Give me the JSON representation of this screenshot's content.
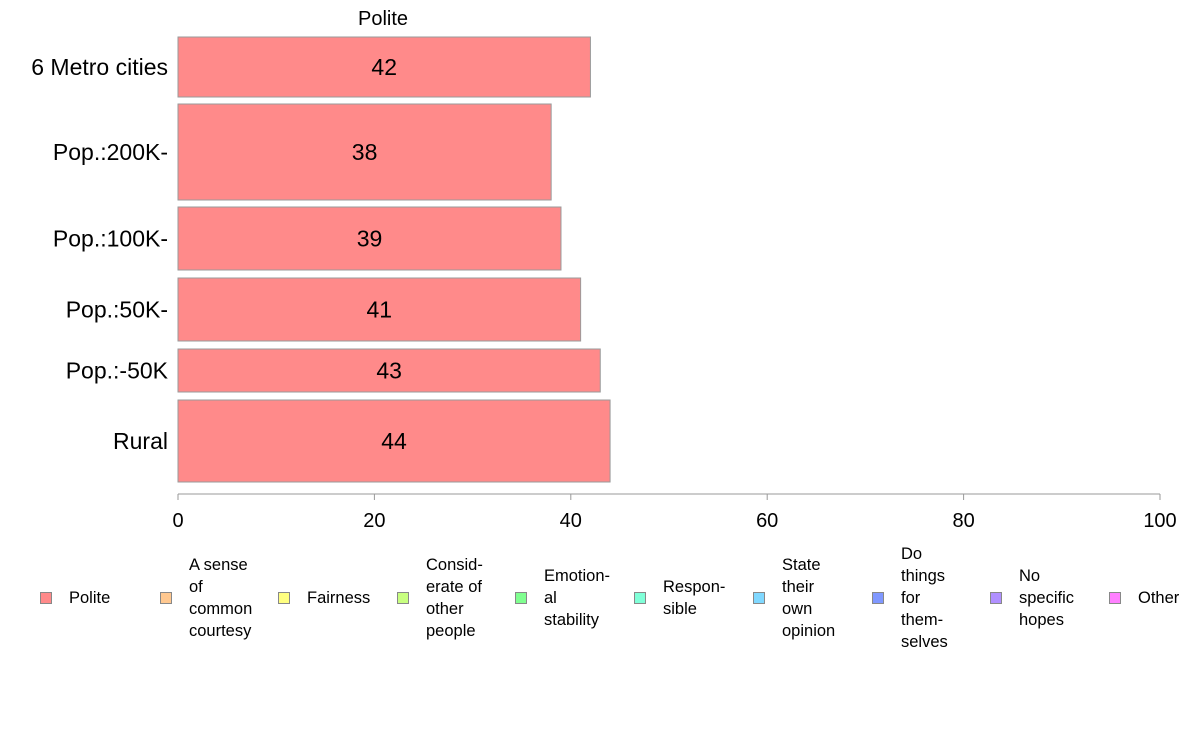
{
  "chart_data": {
    "type": "bar",
    "orientation": "horizontal",
    "title": "Polite",
    "categories": [
      "6 Metro cities",
      "Pop.:200K-",
      "Pop.:100K-",
      "Pop.:50K-",
      "Pop.:-50K",
      "Rural"
    ],
    "series": [
      {
        "name": "Polite",
        "color": "#ff8a8a",
        "values": [
          42,
          38,
          39,
          41,
          43,
          44
        ]
      }
    ],
    "xlim": [
      0,
      100
    ],
    "xticks": [
      0,
      20,
      40,
      60,
      80,
      100
    ],
    "grid": false,
    "legend_position": "bottom",
    "legend": [
      {
        "label": "Polite",
        "color": "#ff8a8a"
      },
      {
        "label": "A sense\nof\ncommon\ncourtesy",
        "color": "#ffc890"
      },
      {
        "label": "Fairness",
        "color": "#ffff80"
      },
      {
        "label": "Consid-\nerate of\nother\npeople",
        "color": "#c8ff80"
      },
      {
        "label": "Emotion-\nal\nstability",
        "color": "#80ff90"
      },
      {
        "label": "Respon-\nsible",
        "color": "#80ffd8"
      },
      {
        "label": "State\ntheir\nown\nopinion",
        "color": "#80d8ff"
      },
      {
        "label": "Do\nthings\nfor\nthem-\nselves",
        "color": "#8098ff"
      },
      {
        "label": "No\nspecific\nhopes",
        "color": "#b090ff"
      },
      {
        "label": "Other",
        "color": "#ff80ff"
      }
    ]
  }
}
